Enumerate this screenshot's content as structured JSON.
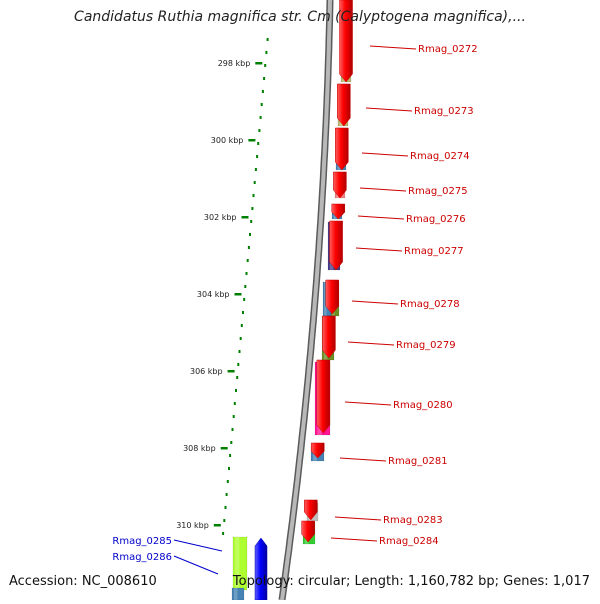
{
  "title": "Candidatus Ruthia magnifica str. Cm (Calyptogena magnifica),...",
  "ticks": [
    "298 kbp",
    "300 kbp",
    "302 kbp",
    "304 kbp",
    "306 kbp",
    "308 kbp",
    "310 kbp"
  ],
  "genes_right": [
    "Rmag_0272",
    "Rmag_0273",
    "Rmag_0274",
    "Rmag_0275",
    "Rmag_0276",
    "Rmag_0277",
    "Rmag_0278",
    "Rmag_0279",
    "Rmag_0280",
    "Rmag_0281",
    "Rmag_0283",
    "Rmag_0284"
  ],
  "genes_left": [
    "Rmag_0285",
    "Rmag_0286"
  ],
  "footer": {
    "accession": "Accession: NC_008610",
    "topology": "Topology: circular; Length: 1,160,782 bp; Genes: 1,017"
  },
  "colors": {
    "forward_strand": "#ff0000",
    "reverse_strand": "#0000ff",
    "label_right": "#cc0000",
    "label_left": "#0000cc",
    "tick": "#008000",
    "backbone": "#8a8a8a"
  }
}
